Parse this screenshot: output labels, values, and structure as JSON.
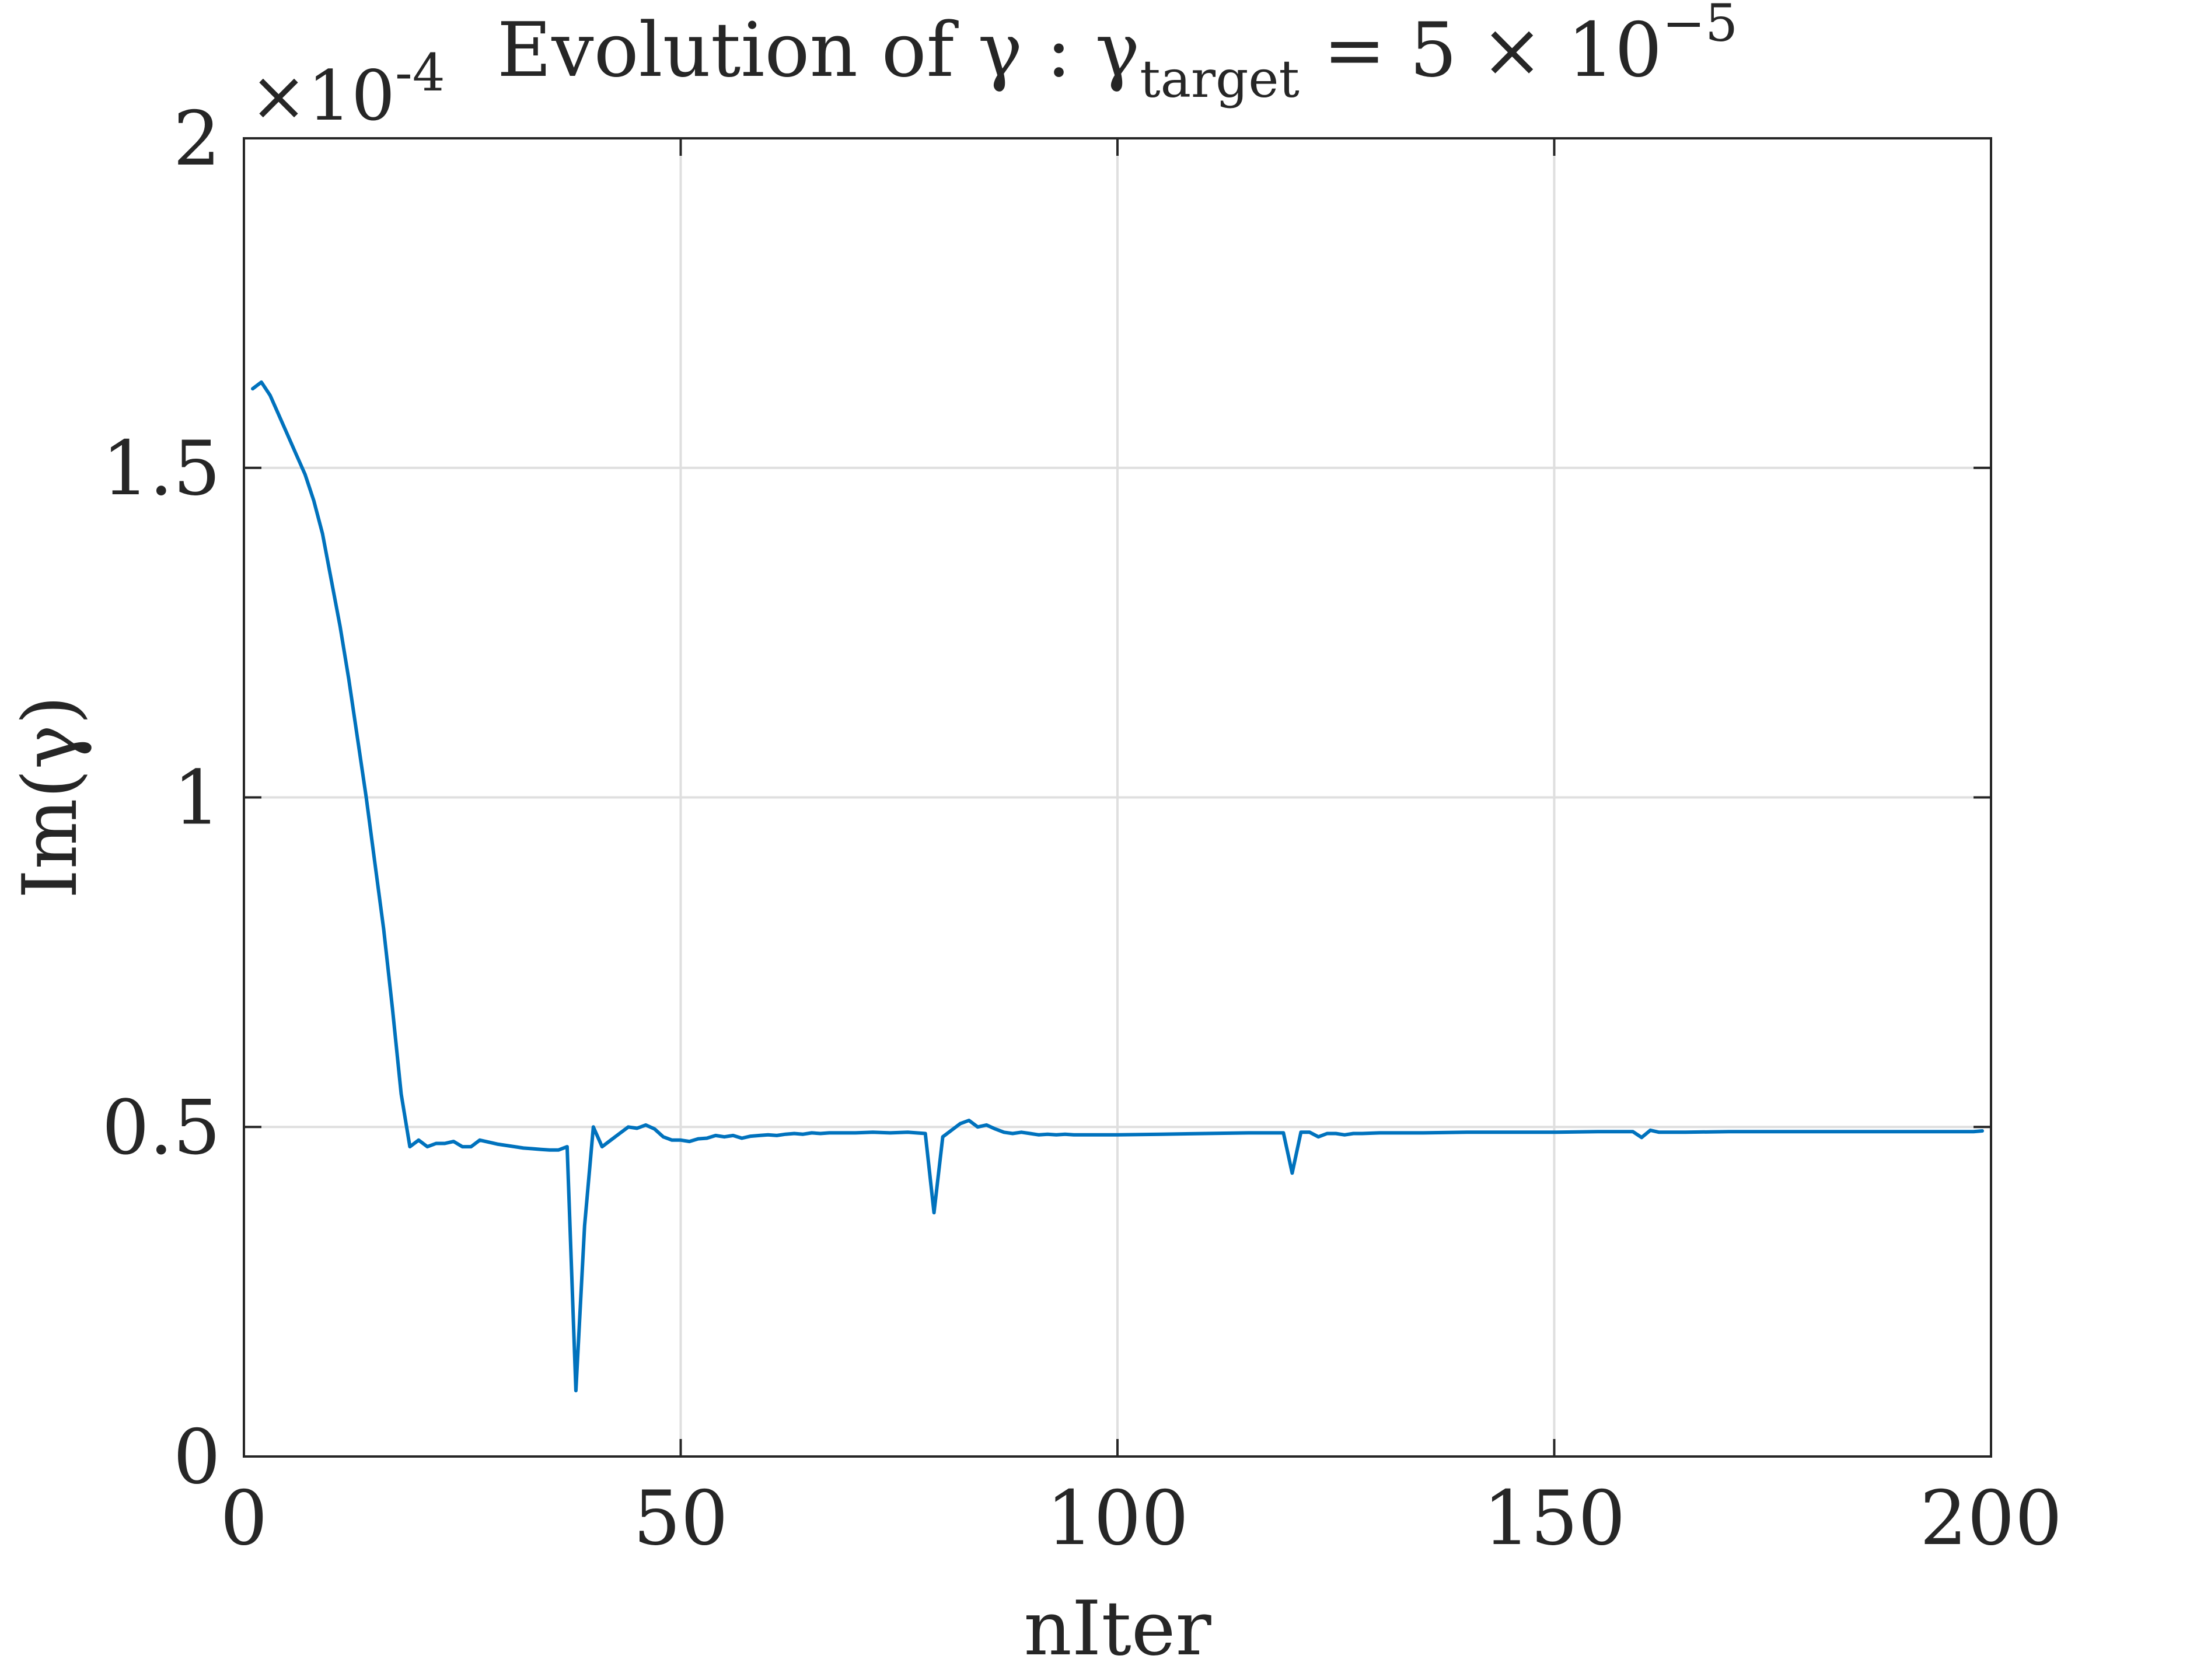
{
  "chart_data": {
    "type": "line",
    "title_prefix": "Evolution of γ : γ",
    "title_subscript": "target",
    "title_suffix_base": " = 5 × 10",
    "title_suffix_exponent": "−5",
    "xlabel": "nIter",
    "ylabel": "Im(γ)",
    "y_exponent_base": "×10",
    "y_exponent_power": "-4",
    "xlim": [
      0,
      200
    ],
    "ylim": [
      0,
      2
    ],
    "y_scale": 0.0001,
    "x_ticks": [
      0,
      50,
      100,
      150,
      200
    ],
    "x_tick_labels": [
      "0",
      "50",
      "100",
      "150",
      "200"
    ],
    "y_ticks": [
      0,
      0.5,
      1,
      1.5,
      2
    ],
    "y_tick_labels": [
      "0",
      "0.5",
      "1",
      "1.5",
      "2"
    ],
    "grid": true,
    "series": [
      {
        "color": "#0072BD",
        "x": [
          1,
          2,
          3,
          4,
          5,
          6,
          7,
          8,
          9,
          10,
          11,
          12,
          13,
          14,
          15,
          16,
          17,
          18,
          19,
          20,
          21,
          22,
          23,
          24,
          25,
          26,
          27,
          28,
          29,
          30,
          31,
          32,
          33,
          34,
          35,
          36,
          37,
          38,
          39,
          40,
          41,
          42,
          43,
          44,
          45,
          46,
          47,
          48,
          49,
          50,
          51,
          52,
          53,
          54,
          55,
          56,
          57,
          58,
          59,
          60,
          61,
          62,
          63,
          64,
          65,
          66,
          67,
          68,
          69,
          70,
          72,
          74,
          76,
          78,
          79,
          80,
          81,
          82,
          83,
          84,
          85,
          86,
          87,
          88,
          89,
          90,
          91,
          92,
          93,
          94,
          95,
          96,
          98,
          100,
          105,
          110,
          115,
          119,
          120,
          121,
          122,
          123,
          124,
          125,
          126,
          127,
          128,
          130,
          135,
          140,
          145,
          150,
          155,
          159,
          160,
          161,
          162,
          165,
          170,
          175,
          180,
          185,
          190,
          195,
          198,
          199
        ],
        "values": [
          1.62,
          1.63,
          1.61,
          1.58,
          1.55,
          1.52,
          1.49,
          1.45,
          1.4,
          1.33,
          1.26,
          1.18,
          1.09,
          1.0,
          0.9,
          0.8,
          0.68,
          0.55,
          0.47,
          0.48,
          0.47,
          0.475,
          0.475,
          0.478,
          0.47,
          0.47,
          0.48,
          0.477,
          0.474,
          0.472,
          0.47,
          0.468,
          0.467,
          0.466,
          0.465,
          0.465,
          0.47,
          0.1,
          0.35,
          0.5,
          0.47,
          0.48,
          0.49,
          0.5,
          0.498,
          0.503,
          0.497,
          0.485,
          0.48,
          0.48,
          0.478,
          0.482,
          0.483,
          0.487,
          0.485,
          0.487,
          0.483,
          0.486,
          0.487,
          0.488,
          0.487,
          0.489,
          0.49,
          0.489,
          0.491,
          0.49,
          0.491,
          0.491,
          0.491,
          0.491,
          0.492,
          0.491,
          0.492,
          0.49,
          0.37,
          0.485,
          0.495,
          0.505,
          0.51,
          0.5,
          0.503,
          0.497,
          0.492,
          0.49,
          0.492,
          0.49,
          0.488,
          0.489,
          0.488,
          0.489,
          0.488,
          0.488,
          0.488,
          0.488,
          0.489,
          0.49,
          0.491,
          0.491,
          0.43,
          0.492,
          0.492,
          0.485,
          0.49,
          0.49,
          0.488,
          0.49,
          0.49,
          0.491,
          0.491,
          0.492,
          0.492,
          0.492,
          0.493,
          0.493,
          0.484,
          0.495,
          0.492,
          0.492,
          0.493,
          0.493,
          0.493,
          0.493,
          0.493,
          0.493,
          0.493,
          0.494
        ]
      }
    ]
  }
}
